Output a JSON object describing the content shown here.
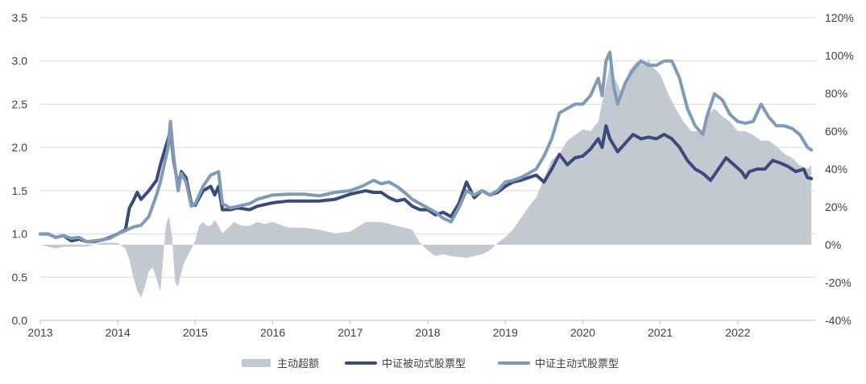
{
  "chart_data": {
    "type": "line",
    "title": "",
    "xlabel": "",
    "ylabel_left": "",
    "ylabel_right": "",
    "ylim_left": [
      0,
      3.5
    ],
    "ylim_right": [
      -40,
      120
    ],
    "xlim": [
      2013.0,
      2023.0
    ],
    "grid": true,
    "legend_position": "bottom",
    "y_ticks_left": [
      "0.0",
      "0.5",
      "1.0",
      "1.5",
      "2.0",
      "2.5",
      "3.0",
      "3.5"
    ],
    "y_ticks_right": [
      "-40%",
      "-20%",
      "0%",
      "20%",
      "40%",
      "60%",
      "80%",
      "100%",
      "120%"
    ],
    "x_ticks": [
      "2013",
      "2014",
      "2015",
      "2016",
      "2017",
      "2018",
      "2019",
      "2020",
      "2021",
      "2022"
    ],
    "series": [
      {
        "name": "主动超额",
        "type": "area",
        "axis": "right",
        "color": "#c3c9d1",
        "x": [
          2013.0,
          2013.1,
          2013.2,
          2013.3,
          2013.4,
          2013.5,
          2013.6,
          2013.7,
          2013.8,
          2013.9,
          2014.0,
          2014.1,
          2014.15,
          2014.2,
          2014.25,
          2014.3,
          2014.35,
          2014.4,
          2014.45,
          2014.5,
          2014.55,
          2014.58,
          2014.62,
          2014.66,
          2014.7,
          2014.74,
          2014.78,
          2014.8,
          2014.85,
          2014.9,
          2015.0,
          2015.05,
          2015.1,
          2015.15,
          2015.2,
          2015.25,
          2015.3,
          2015.35,
          2015.45,
          2015.5,
          2015.6,
          2015.7,
          2015.8,
          2015.9,
          2016.0,
          2016.2,
          2016.4,
          2016.6,
          2016.8,
          2017.0,
          2017.2,
          2017.4,
          2017.6,
          2017.8,
          2017.9,
          2018.0,
          2018.1,
          2018.2,
          2018.3,
          2018.5,
          2018.7,
          2018.8,
          2018.9,
          2019.0,
          2019.1,
          2019.2,
          2019.3,
          2019.4,
          2019.5,
          2019.6,
          2019.7,
          2019.8,
          2019.9,
          2020.0,
          2020.1,
          2020.2,
          2020.3,
          2020.35,
          2020.38,
          2020.45,
          2020.5,
          2020.6,
          2020.7,
          2020.8,
          2020.85,
          2020.9,
          2021.0,
          2021.1,
          2021.15,
          2021.2,
          2021.3,
          2021.4,
          2021.5,
          2021.55,
          2021.6,
          2021.7,
          2021.8,
          2021.9,
          2022.0,
          2022.1,
          2022.2,
          2022.3,
          2022.4,
          2022.5,
          2022.6,
          2022.7,
          2022.8,
          2022.9,
          2022.95
        ],
        "values": [
          0,
          -1,
          -2,
          -1,
          -1,
          -1,
          -1,
          0,
          1,
          1,
          1,
          -2,
          -8,
          -17,
          -24,
          -28,
          -22,
          -14,
          -12,
          -18,
          -25,
          -10,
          10,
          15,
          5,
          -20,
          -22,
          -18,
          -10,
          -6,
          2,
          10,
          12,
          10,
          10,
          13,
          10,
          6,
          10,
          12,
          10,
          10,
          12,
          11,
          12,
          9,
          9,
          8,
          6,
          7,
          12,
          12,
          10,
          8,
          1,
          -3,
          -6,
          -5,
          -6,
          -7,
          -5,
          -3,
          1,
          4,
          8,
          14,
          20,
          25,
          35,
          45,
          48,
          55,
          58,
          61,
          60,
          65,
          85,
          95,
          90,
          85,
          80,
          92,
          97,
          95,
          98,
          94,
          90,
          80,
          76,
          72,
          65,
          60,
          60,
          60,
          68,
          72,
          68,
          65,
          60,
          60,
          58,
          55,
          55,
          52,
          48,
          46,
          42,
          40,
          42
        ]
      },
      {
        "name": "中证被动式股票型",
        "type": "line",
        "axis": "left",
        "color": "#3b4a78",
        "x": [
          2013.0,
          2013.1,
          2013.2,
          2013.3,
          2013.4,
          2013.5,
          2013.6,
          2013.7,
          2013.8,
          2013.9,
          2014.0,
          2014.1,
          2014.15,
          2014.2,
          2014.25,
          2014.3,
          2014.4,
          2014.5,
          2014.55,
          2014.6,
          2014.65,
          2014.68,
          2014.72,
          2014.78,
          2014.82,
          2014.88,
          2014.95,
          2015.0,
          2015.1,
          2015.2,
          2015.25,
          2015.3,
          2015.35,
          2015.45,
          2015.55,
          2015.7,
          2015.8,
          2016.0,
          2016.2,
          2016.4,
          2016.6,
          2016.8,
          2017.0,
          2017.2,
          2017.3,
          2017.4,
          2017.5,
          2017.6,
          2017.7,
          2017.8,
          2017.9,
          2018.0,
          2018.1,
          2018.2,
          2018.3,
          2018.4,
          2018.5,
          2018.6,
          2018.7,
          2018.8,
          2018.9,
          2019.0,
          2019.1,
          2019.2,
          2019.3,
          2019.4,
          2019.5,
          2019.6,
          2019.7,
          2019.8,
          2019.9,
          2020.0,
          2020.1,
          2020.2,
          2020.25,
          2020.3,
          2020.35,
          2020.45,
          2020.55,
          2020.65,
          2020.75,
          2020.85,
          2020.95,
          2021.05,
          2021.15,
          2021.25,
          2021.35,
          2021.45,
          2021.55,
          2021.65,
          2021.75,
          2021.85,
          2021.95,
          2022.05,
          2022.1,
          2022.15,
          2022.25,
          2022.35,
          2022.45,
          2022.55,
          2022.65,
          2022.75,
          2022.85,
          2022.9,
          2022.95
        ],
        "values": [
          1.0,
          1.0,
          0.96,
          0.98,
          0.92,
          0.94,
          0.91,
          0.91,
          0.93,
          0.96,
          1.0,
          1.05,
          1.3,
          1.38,
          1.48,
          1.4,
          1.5,
          1.62,
          1.8,
          1.95,
          2.1,
          2.2,
          1.85,
          1.55,
          1.72,
          1.65,
          1.35,
          1.33,
          1.5,
          1.55,
          1.45,
          1.55,
          1.28,
          1.28,
          1.3,
          1.28,
          1.32,
          1.36,
          1.38,
          1.38,
          1.38,
          1.4,
          1.46,
          1.5,
          1.48,
          1.48,
          1.42,
          1.38,
          1.4,
          1.32,
          1.28,
          1.28,
          1.22,
          1.25,
          1.2,
          1.35,
          1.6,
          1.42,
          1.5,
          1.45,
          1.48,
          1.55,
          1.6,
          1.62,
          1.65,
          1.68,
          1.6,
          1.75,
          1.92,
          1.8,
          1.88,
          1.9,
          1.98,
          2.1,
          2.0,
          2.25,
          2.1,
          1.95,
          2.05,
          2.15,
          2.1,
          2.12,
          2.1,
          2.15,
          2.1,
          2.0,
          1.85,
          1.75,
          1.7,
          1.62,
          1.75,
          1.88,
          1.8,
          1.72,
          1.65,
          1.72,
          1.75,
          1.75,
          1.85,
          1.82,
          1.78,
          1.72,
          1.75,
          1.65,
          1.64
        ]
      },
      {
        "name": "中证主动式股票型",
        "type": "line",
        "axis": "left",
        "color": "#7f9bb8",
        "x": [
          2013.0,
          2013.1,
          2013.2,
          2013.3,
          2013.4,
          2013.5,
          2013.6,
          2013.7,
          2013.8,
          2013.9,
          2014.0,
          2014.1,
          2014.2,
          2014.3,
          2014.4,
          2014.5,
          2014.55,
          2014.6,
          2014.65,
          2014.68,
          2014.72,
          2014.78,
          2014.82,
          2014.88,
          2014.95,
          2015.0,
          2015.1,
          2015.2,
          2015.25,
          2015.3,
          2015.35,
          2015.45,
          2015.55,
          2015.7,
          2015.8,
          2016.0,
          2016.2,
          2016.4,
          2016.6,
          2016.8,
          2017.0,
          2017.15,
          2017.3,
          2017.4,
          2017.5,
          2017.6,
          2017.7,
          2017.8,
          2017.9,
          2018.0,
          2018.1,
          2018.2,
          2018.3,
          2018.4,
          2018.5,
          2018.6,
          2018.7,
          2018.8,
          2018.9,
          2019.0,
          2019.1,
          2019.2,
          2019.3,
          2019.4,
          2019.5,
          2019.6,
          2019.7,
          2019.8,
          2019.9,
          2020.0,
          2020.1,
          2020.2,
          2020.25,
          2020.3,
          2020.35,
          2020.4,
          2020.45,
          2020.55,
          2020.65,
          2020.75,
          2020.85,
          2020.95,
          2021.05,
          2021.15,
          2021.25,
          2021.35,
          2021.45,
          2021.55,
          2021.6,
          2021.7,
          2021.8,
          2021.9,
          2022.0,
          2022.1,
          2022.2,
          2022.3,
          2022.4,
          2022.5,
          2022.6,
          2022.7,
          2022.8,
          2022.9,
          2022.95
        ],
        "values": [
          1.0,
          1.0,
          0.96,
          0.98,
          0.95,
          0.96,
          0.91,
          0.92,
          0.93,
          0.95,
          1.0,
          1.04,
          1.08,
          1.1,
          1.2,
          1.45,
          1.6,
          1.8,
          2.0,
          2.3,
          1.9,
          1.5,
          1.7,
          1.6,
          1.32,
          1.35,
          1.55,
          1.68,
          1.7,
          1.72,
          1.35,
          1.3,
          1.32,
          1.35,
          1.4,
          1.45,
          1.46,
          1.46,
          1.44,
          1.48,
          1.5,
          1.55,
          1.62,
          1.58,
          1.6,
          1.55,
          1.48,
          1.4,
          1.35,
          1.3,
          1.25,
          1.18,
          1.14,
          1.3,
          1.5,
          1.45,
          1.5,
          1.45,
          1.5,
          1.6,
          1.62,
          1.65,
          1.7,
          1.75,
          1.9,
          2.1,
          2.4,
          2.45,
          2.5,
          2.5,
          2.6,
          2.8,
          2.6,
          3.0,
          3.1,
          2.7,
          2.5,
          2.75,
          2.9,
          3.0,
          2.95,
          2.95,
          3.0,
          3.0,
          2.8,
          2.45,
          2.25,
          2.15,
          2.35,
          2.62,
          2.55,
          2.38,
          2.3,
          2.28,
          2.3,
          2.5,
          2.35,
          2.25,
          2.25,
          2.22,
          2.15,
          2.0,
          1.97
        ]
      }
    ]
  }
}
